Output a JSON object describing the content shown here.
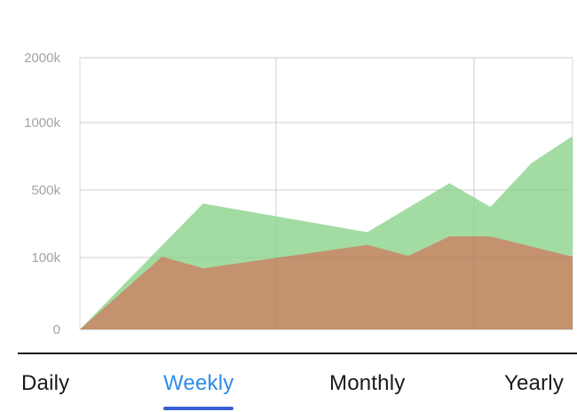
{
  "chart_data": {
    "type": "area",
    "title": "",
    "xlabel": "",
    "ylabel": "",
    "y_ticks": [
      "0",
      "100k",
      "500k",
      "1000k",
      "2000k"
    ],
    "y_tick_values": [
      0,
      100000,
      500000,
      1000000,
      2000000
    ],
    "ylim": [
      0,
      2000000
    ],
    "x": [
      0,
      1,
      2,
      3,
      4,
      5,
      6,
      7,
      8,
      9,
      10,
      11,
      12
    ],
    "grid": true,
    "series": [
      {
        "color": "#a2dca3",
        "values": [
          0,
          null,
          null,
          420000,
          null,
          null,
          null,
          250000,
          null,
          550000,
          400000,
          700000,
          900000
        ]
      },
      {
        "color": "#c4926f",
        "values": [
          0,
          null,
          105000,
          85000,
          null,
          105000,
          null,
          175000,
          110000,
          225000,
          225000,
          null,
          105000
        ]
      }
    ]
  },
  "tabs": [
    {
      "label": "Daily",
      "active": false
    },
    {
      "label": "Weekly",
      "active": true
    },
    {
      "label": "Monthly",
      "active": false
    },
    {
      "label": "Yearly",
      "active": false
    }
  ]
}
